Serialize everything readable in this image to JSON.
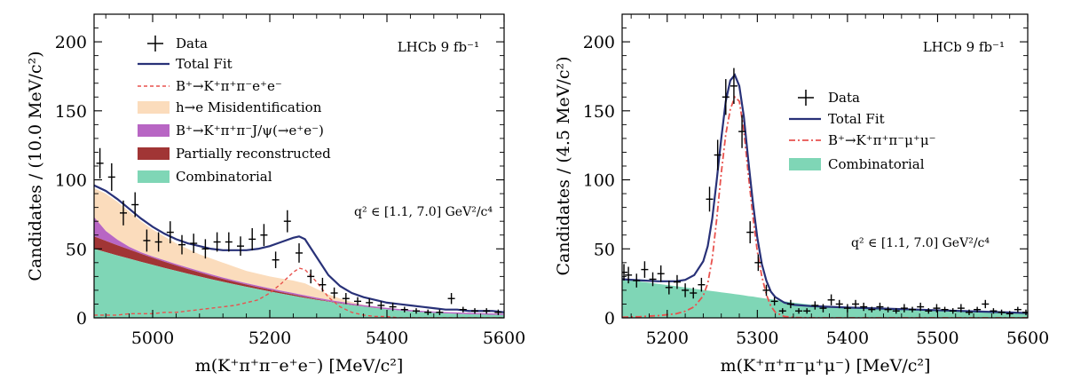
{
  "chart_data": [
    {
      "type": "histogram-fit",
      "xlim": [
        4900,
        5600
      ],
      "ylim": [
        0,
        220
      ],
      "xticks": [
        5000,
        5200,
        5400,
        5600
      ],
      "xtick_labels": [
        "5000",
        "5200",
        "5400",
        "5600"
      ],
      "yticks": [
        0,
        50,
        100,
        150,
        200
      ],
      "ytick_labels": [
        "0",
        "50",
        "100",
        "150",
        "200"
      ],
      "xlabel": "m(K⁺π⁺π⁻e⁺e⁻) [MeV/c²]",
      "ylabel": "Candidates / (10.0 MeV/c²)",
      "experiment_label": "LHCb 9 fb⁻¹",
      "annotation": "q² ∈ [1.1, 7.0] GeV²/c⁴",
      "legend": [
        {
          "key": "data",
          "label": "Data",
          "style": "marker"
        },
        {
          "key": "total",
          "label": "Total Fit",
          "style": "line",
          "color": "#283178"
        },
        {
          "key": "signal",
          "label": "B⁺→K⁺π⁺π⁻e⁺e⁻",
          "style": "dashed",
          "color": "#e8524e"
        },
        {
          "key": "misid",
          "label": "h→e Misidentification",
          "style": "fill",
          "color": "#fbdcbc"
        },
        {
          "key": "jpsi",
          "label": "B⁺→K⁺π⁺π⁻J/ψ(→e⁺e⁻)",
          "style": "fill",
          "color": "#b866c4"
        },
        {
          "key": "partreco",
          "label": "Partially reconstructed",
          "style": "fill",
          "color": "#a13535"
        },
        {
          "key": "comb",
          "label": "Combinatorial",
          "style": "fill",
          "color": "#7fd6b6"
        }
      ],
      "data_points": {
        "x": [
          4910,
          4930,
          4950,
          4970,
          4990,
          5010,
          5030,
          5050,
          5070,
          5090,
          5110,
          5130,
          5150,
          5170,
          5190,
          5210,
          5230,
          5250,
          5270,
          5290,
          5310,
          5330,
          5350,
          5370,
          5390,
          5410,
          5430,
          5450,
          5470,
          5490,
          5510,
          5530,
          5550,
          5570,
          5590
        ],
        "y": [
          112,
          102,
          76,
          82,
          56,
          55,
          62,
          53,
          54,
          50,
          55,
          55,
          52,
          57,
          60,
          42,
          70,
          47,
          30,
          24,
          18,
          14,
          12,
          11,
          9,
          8,
          6,
          5,
          4,
          4,
          14,
          6,
          5,
          5,
          4
        ],
        "err": [
          11,
          10,
          9,
          9,
          8,
          7,
          8,
          7,
          7,
          7,
          7,
          7,
          7,
          8,
          8,
          6,
          8,
          7,
          5,
          5,
          4,
          4,
          3,
          3,
          3,
          3,
          2,
          2,
          2,
          2,
          4,
          2,
          2,
          2,
          2
        ]
      },
      "curves": {
        "x": [
          4900,
          4920,
          4940,
          4960,
          4980,
          5000,
          5020,
          5040,
          5060,
          5080,
          5100,
          5120,
          5140,
          5160,
          5180,
          5200,
          5220,
          5240,
          5250,
          5260,
          5280,
          5300,
          5320,
          5340,
          5360,
          5380,
          5400,
          5420,
          5440,
          5460,
          5480,
          5500,
          5520,
          5540,
          5560,
          5580,
          5600
        ],
        "total": [
          96,
          92,
          86,
          79,
          72,
          66,
          61,
          57,
          54,
          52,
          50,
          49,
          49,
          49,
          50,
          52,
          55,
          58,
          59,
          57,
          44,
          31,
          23,
          18,
          15,
          13,
          11,
          10,
          9,
          8,
          7,
          6,
          6,
          5,
          5,
          5,
          4
        ],
        "signal": [
          2,
          2,
          2,
          3,
          3,
          3,
          4,
          4,
          5,
          6,
          7,
          8,
          9,
          11,
          13,
          18,
          25,
          33,
          36,
          35,
          26,
          15,
          8,
          4,
          2,
          1,
          1,
          0,
          0,
          0,
          0,
          0,
          0,
          0,
          0,
          0,
          0
        ],
        "comb": [
          50,
          47.6,
          45.2,
          42.9,
          40.6,
          38.4,
          36.2,
          34.1,
          32.0,
          30.0,
          28.0,
          26.1,
          24.3,
          22.5,
          20.8,
          19.1,
          17.5,
          16.0,
          15.2,
          14.5,
          13.0,
          11.7,
          10.4,
          9.2,
          8.1,
          7.1,
          6.2,
          5.4,
          4.7,
          4.1,
          3.6,
          3.2,
          2.9,
          2.6,
          2.4,
          2.2,
          2.0
        ],
        "partreco_top": [
          59,
          55.8,
          52.6,
          49.5,
          46.5,
          43.5,
          40.7,
          38.0,
          35.4,
          32.9,
          30.5,
          28.2,
          26.1,
          24.1,
          22.2,
          20.4,
          18.6,
          17.0,
          16.1,
          15.3,
          13.6,
          12.1,
          10.7,
          9.4,
          8.2,
          7.2,
          6.2,
          5.4,
          4.7,
          4.1,
          3.6,
          3.2,
          2.9,
          2.6,
          2.4,
          2.2,
          2.0
        ],
        "jpsi_top": [
          73,
          63.0,
          56.6,
          51.5,
          47.5,
          44.5,
          41.7,
          39.0,
          36.4,
          33.9,
          31.5,
          29.2,
          27.1,
          25.1,
          23.2,
          21.4,
          19.6,
          18.0,
          17.1,
          16.3,
          14.6,
          13.1,
          11.7,
          10.4,
          9.2,
          8.2,
          7.2,
          6.4,
          5.7,
          5.1,
          4.6,
          4.2,
          3.9,
          3.6,
          3.4,
          3.2,
          3.0
        ],
        "misid_top": [
          94,
          90,
          84,
          77,
          70,
          64,
          59,
          54,
          50,
          46,
          43,
          40,
          37,
          34,
          32,
          30,
          28.5,
          27,
          26,
          25,
          21,
          17,
          14,
          11.5,
          9.5,
          8.2,
          7.2,
          6.4,
          5.7,
          5.1,
          4.6,
          4.2,
          3.9,
          3.6,
          3.4,
          3.2,
          3.0
        ]
      }
    },
    {
      "type": "histogram-fit",
      "xlim": [
        5150,
        5600
      ],
      "ylim": [
        0,
        220
      ],
      "xticks": [
        5200,
        5300,
        5400,
        5500,
        5600
      ],
      "xtick_labels": [
        "5200",
        "5300",
        "5400",
        "5500",
        "5600"
      ],
      "yticks": [
        0,
        50,
        100,
        150,
        200
      ],
      "ytick_labels": [
        "0",
        "50",
        "100",
        "150",
        "200"
      ],
      "xlabel": "m(K⁺π⁺π⁻μ⁺μ⁻) [MeV/c²]",
      "ylabel": "Candidates / (4.5 MeV/c²)",
      "experiment_label": "LHCb 9 fb⁻¹",
      "annotation": "q² ∈ [1.1, 7.0] GeV²/c⁴",
      "legend": [
        {
          "key": "data",
          "label": "Data",
          "style": "marker"
        },
        {
          "key": "total",
          "label": "Total Fit",
          "style": "line",
          "color": "#283178"
        },
        {
          "key": "signal",
          "label": "B⁺→K⁺π⁺π⁻μ⁺μ⁻",
          "style": "dashdot",
          "color": "#e8524e"
        },
        {
          "key": "comb",
          "label": "Combinatorial",
          "style": "fill",
          "color": "#7fd6b6"
        }
      ],
      "data_points": {
        "x": [
          5152,
          5157,
          5166,
          5175,
          5184,
          5193,
          5202,
          5211,
          5220,
          5229,
          5238,
          5247,
          5256,
          5265,
          5274,
          5283,
          5292,
          5301,
          5310,
          5319,
          5328,
          5337,
          5346,
          5355,
          5364,
          5373,
          5382,
          5391,
          5400,
          5409,
          5418,
          5427,
          5436,
          5445,
          5454,
          5463,
          5472,
          5481,
          5490,
          5499,
          5508,
          5517,
          5526,
          5535,
          5544,
          5553,
          5562,
          5571,
          5580,
          5589,
          5598
        ],
        "y": [
          33,
          31,
          27,
          35,
          28,
          32,
          22,
          26,
          20,
          18,
          24,
          86,
          118,
          160,
          168,
          135,
          62,
          40,
          20,
          12,
          5,
          10,
          5,
          5,
          9,
          7,
          13,
          10,
          7,
          10,
          8,
          6,
          8,
          6,
          5,
          7,
          6,
          8,
          5,
          7,
          6,
          5,
          7,
          4,
          6,
          10,
          5,
          4,
          3,
          6,
          4
        ],
        "err": [
          6,
          6,
          5,
          6,
          5,
          6,
          5,
          5,
          5,
          4,
          5,
          9,
          11,
          13,
          13,
          12,
          8,
          6,
          4,
          3,
          2,
          3,
          2,
          2,
          3,
          3,
          4,
          3,
          3,
          3,
          3,
          2,
          3,
          2,
          2,
          3,
          2,
          3,
          2,
          3,
          2,
          2,
          3,
          2,
          2,
          3,
          2,
          2,
          2,
          2,
          2
        ]
      },
      "curves": {
        "x": [
          5150,
          5170,
          5190,
          5210,
          5220,
          5230,
          5240,
          5245,
          5250,
          5255,
          5260,
          5265,
          5270,
          5275,
          5280,
          5285,
          5290,
          5295,
          5300,
          5305,
          5310,
          5315,
          5320,
          5330,
          5340,
          5360,
          5400,
          5450,
          5500,
          5550,
          5600
        ],
        "total": [
          28,
          27.2,
          26.5,
          26.5,
          27.5,
          31,
          41,
          52,
          72,
          100,
          130,
          157,
          172,
          176,
          168,
          146,
          114,
          84,
          58,
          39,
          27,
          19,
          15,
          11,
          9.5,
          8.5,
          7.5,
          6.5,
          5.5,
          4.5,
          3.5
        ],
        "signal": [
          0.5,
          0.9,
          1.6,
          3,
          4.8,
          8,
          16,
          25,
          43,
          72,
          105,
          133,
          151,
          160,
          157,
          136,
          104,
          74,
          48,
          30,
          17,
          8.5,
          4,
          1,
          0.3,
          0,
          0,
          0,
          0,
          0,
          0
        ],
        "comb": [
          28,
          26.3,
          24.6,
          22.9,
          22.0,
          21.1,
          20.2,
          19.8,
          19.4,
          19.0,
          18.5,
          18.1,
          17.7,
          17.2,
          16.8,
          16.3,
          15.8,
          15.4,
          14.9,
          14.4,
          13.9,
          13.5,
          13.0,
          12.0,
          11.0,
          9.5,
          7.5,
          6.5,
          5.5,
          4.5,
          3.5
        ]
      }
    }
  ]
}
